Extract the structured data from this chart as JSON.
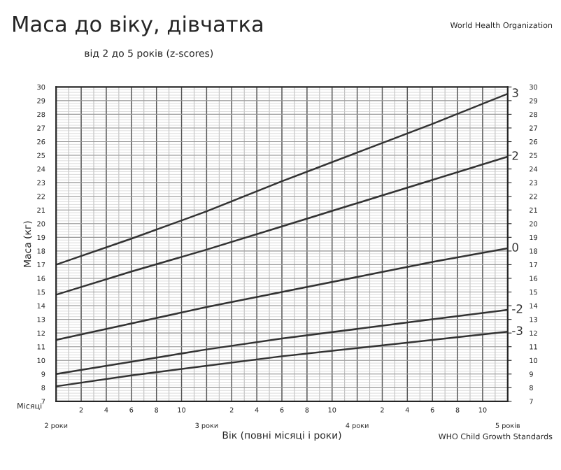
{
  "chart_data": {
    "type": "line",
    "title": "Маса до віку, дівчатка",
    "subtitle": "від 2 до 5 років (z-scores)",
    "xlabel": "Вік (повні місяці і роки)",
    "ylabel": "Маса (кг)",
    "annotations": [
      "2",
      "4",
      "6",
      "8",
      "10",
      "2",
      "4",
      "6",
      "8",
      "10",
      "2",
      "4",
      "6",
      "8",
      "10",
      "Місяці",
      "WHO Child Growth Standards",
      "World Health Organization"
    ],
    "x": [
      2,
      2.5,
      3,
      3.5,
      4,
      4.5,
      5
    ],
    "series": [
      {
        "name": "3",
        "color": "#333333",
        "values": [
          17.0,
          18.9,
          20.9,
          23.1,
          25.2,
          27.3,
          29.5
        ]
      },
      {
        "name": "2",
        "color": "#333333",
        "values": [
          14.8,
          16.5,
          18.1,
          19.8,
          21.5,
          23.2,
          24.9
        ]
      },
      {
        "name": "0",
        "color": "#333333",
        "values": [
          11.5,
          12.7,
          13.9,
          15.0,
          16.1,
          17.2,
          18.2
        ]
      },
      {
        "name": "-2",
        "color": "#333333",
        "values": [
          9.0,
          9.9,
          10.8,
          11.6,
          12.3,
          13.0,
          13.7
        ]
      },
      {
        "name": "-3",
        "color": "#333333",
        "values": [
          8.1,
          8.9,
          9.6,
          10.3,
          10.9,
          11.5,
          12.1
        ]
      }
    ],
    "xlim": [
      2,
      5
    ],
    "xticks": [
      {
        "value": 2,
        "label": "2 роки"
      },
      {
        "value": 2.1667,
        "label": null
      },
      {
        "value": 2.3333,
        "label": null
      },
      {
        "value": 2.5,
        "label": null
      },
      {
        "value": 2.6667,
        "label": null
      },
      {
        "value": 2.8333,
        "label": null
      },
      {
        "value": 3,
        "label": "3 роки"
      },
      {
        "value": 3.1667,
        "label": null
      },
      {
        "value": 3.3333,
        "label": null
      },
      {
        "value": 3.5,
        "label": null
      },
      {
        "value": 3.6667,
        "label": null
      },
      {
        "value": 3.8333,
        "label": null
      },
      {
        "value": 4,
        "label": "4 роки"
      },
      {
        "value": 4.1667,
        "label": null
      },
      {
        "value": 4.3333,
        "label": null
      },
      {
        "value": 4.5,
        "label": null
      },
      {
        "value": 4.6667,
        "label": null
      },
      {
        "value": 4.8333,
        "label": null
      },
      {
        "value": 5,
        "label": "5 років"
      }
    ],
    "ylim": [
      7,
      30
    ],
    "yticks": [
      7,
      8,
      9,
      10,
      11,
      12,
      13,
      14,
      15,
      16,
      17,
      18,
      19,
      20,
      21,
      22,
      23,
      24,
      25,
      26,
      27,
      28,
      29,
      30
    ],
    "y2lim": [
      7,
      30
    ],
    "y2ticks": [
      7,
      8,
      9,
      10,
      11,
      12,
      13,
      14,
      15,
      16,
      17,
      18,
      19,
      20,
      21,
      22,
      23,
      24,
      25,
      26,
      27,
      28,
      29,
      30
    ],
    "grid": true,
    "legend": "right",
    "marker": "none",
    "line_style": "solid"
  }
}
